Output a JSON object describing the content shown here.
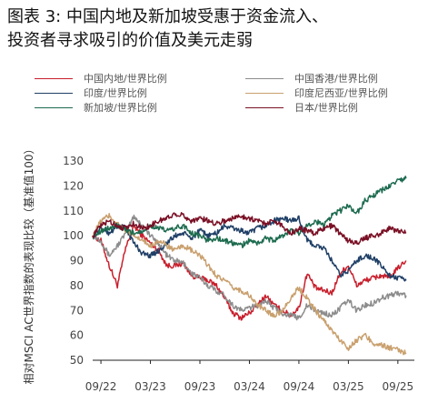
{
  "title_line1": "图表 3:  中国内地及新加坡受惠于资金流入、",
  "title_line2": "投资者寻求吸引的价值及美元走弱",
  "chart_data": {
    "type": "line",
    "title": "图表 3:  中国内地及新加坡受惠于资金流入、投资者寻求吸引的价值及美元走弱",
    "ylabel": "相对MSCI AC世界指数的表现比较（基准值100）",
    "xlabel": "",
    "ylim": [
      50,
      130
    ],
    "yticks": [
      50,
      60,
      70,
      80,
      90,
      100,
      110,
      120,
      130
    ],
    "xrange": [
      "2022-08",
      "2025-11"
    ],
    "xticks": [
      {
        "label": "09/22",
        "date": "2022-09"
      },
      {
        "label": "03/23",
        "date": "2023-03"
      },
      {
        "label": "09/23",
        "date": "2023-09"
      },
      {
        "label": "03/24",
        "date": "2024-03"
      },
      {
        "label": "09/24",
        "date": "2024-09"
      },
      {
        "label": "03/25",
        "date": "2025-03"
      },
      {
        "label": "09/25",
        "date": "2025-09"
      }
    ],
    "grid": false,
    "legend_position": "top",
    "series": [
      {
        "name": "中国内地/世界比例",
        "color": "#c8202d",
        "points": [
          [
            "2022-08",
            100
          ],
          [
            "2022-09",
            98
          ],
          [
            "2022-10",
            88
          ],
          [
            "2022-11",
            80
          ],
          [
            "2022-12",
            95
          ],
          [
            "2023-01",
            104
          ],
          [
            "2023-02",
            100
          ],
          [
            "2023-03",
            97
          ],
          [
            "2023-04",
            94
          ],
          [
            "2023-05",
            88
          ],
          [
            "2023-06",
            88
          ],
          [
            "2023-07",
            89
          ],
          [
            "2023-08",
            84
          ],
          [
            "2023-09",
            83
          ],
          [
            "2023-10",
            82
          ],
          [
            "2023-11",
            80
          ],
          [
            "2023-12",
            75
          ],
          [
            "2024-01",
            69
          ],
          [
            "2024-02",
            67
          ],
          [
            "2024-03",
            69
          ],
          [
            "2024-04",
            72
          ],
          [
            "2024-05",
            76
          ],
          [
            "2024-06",
            72
          ],
          [
            "2024-07",
            70
          ],
          [
            "2024-08",
            68
          ],
          [
            "2024-09",
            71
          ],
          [
            "2024-10",
            85
          ],
          [
            "2024-11",
            79
          ],
          [
            "2024-12",
            78
          ],
          [
            "2025-01",
            77
          ],
          [
            "2025-02",
            85
          ],
          [
            "2025-03",
            88
          ],
          [
            "2025-04",
            80
          ],
          [
            "2025-05",
            82
          ],
          [
            "2025-06",
            83
          ],
          [
            "2025-07",
            84
          ],
          [
            "2025-08",
            83
          ],
          [
            "2025-09",
            87
          ],
          [
            "2025-10",
            90
          ]
        ]
      },
      {
        "name": "中国香港/世界比例",
        "color": "#8c8c8c",
        "points": [
          [
            "2022-08",
            100
          ],
          [
            "2022-09",
            98
          ],
          [
            "2022-10",
            92
          ],
          [
            "2022-11",
            96
          ],
          [
            "2022-12",
            101
          ],
          [
            "2023-01",
            108
          ],
          [
            "2023-02",
            104
          ],
          [
            "2023-03",
            100
          ],
          [
            "2023-04",
            97
          ],
          [
            "2023-05",
            92
          ],
          [
            "2023-06",
            90
          ],
          [
            "2023-07",
            89
          ],
          [
            "2023-08",
            85
          ],
          [
            "2023-09",
            83
          ],
          [
            "2023-10",
            80
          ],
          [
            "2023-11",
            78
          ],
          [
            "2023-12",
            76
          ],
          [
            "2024-01",
            72
          ],
          [
            "2024-02",
            70
          ],
          [
            "2024-03",
            71
          ],
          [
            "2024-04",
            72
          ],
          [
            "2024-05",
            74
          ],
          [
            "2024-06",
            71
          ],
          [
            "2024-07",
            69
          ],
          [
            "2024-08",
            68
          ],
          [
            "2024-09",
            67
          ],
          [
            "2024-10",
            72
          ],
          [
            "2024-11",
            70
          ],
          [
            "2024-12",
            69
          ],
          [
            "2025-01",
            68
          ],
          [
            "2025-02",
            71
          ],
          [
            "2025-03",
            74
          ],
          [
            "2025-04",
            70
          ],
          [
            "2025-05",
            72
          ],
          [
            "2025-06",
            73
          ],
          [
            "2025-07",
            75
          ],
          [
            "2025-08",
            76
          ],
          [
            "2025-09",
            77
          ],
          [
            "2025-10",
            76
          ]
        ]
      },
      {
        "name": "印度/世界比例",
        "color": "#1f3f66",
        "points": [
          [
            "2022-08",
            100
          ],
          [
            "2022-09",
            103
          ],
          [
            "2022-10",
            101
          ],
          [
            "2022-11",
            104
          ],
          [
            "2022-12",
            103
          ],
          [
            "2023-01",
            97
          ],
          [
            "2023-02",
            93
          ],
          [
            "2023-03",
            92
          ],
          [
            "2023-04",
            94
          ],
          [
            "2023-05",
            97
          ],
          [
            "2023-06",
            100
          ],
          [
            "2023-07",
            101
          ],
          [
            "2023-08",
            99
          ],
          [
            "2023-09",
            102
          ],
          [
            "2023-10",
            100
          ],
          [
            "2023-11",
            101
          ],
          [
            "2023-12",
            104
          ],
          [
            "2024-01",
            103
          ],
          [
            "2024-02",
            102
          ],
          [
            "2024-03",
            101
          ],
          [
            "2024-04",
            103
          ],
          [
            "2024-05",
            104
          ],
          [
            "2024-06",
            106
          ],
          [
            "2024-07",
            107
          ],
          [
            "2024-08",
            106
          ],
          [
            "2024-09",
            107
          ],
          [
            "2024-10",
            98
          ],
          [
            "2024-11",
            96
          ],
          [
            "2024-12",
            95
          ],
          [
            "2025-01",
            90
          ],
          [
            "2025-02",
            84
          ],
          [
            "2025-03",
            86
          ],
          [
            "2025-04",
            90
          ],
          [
            "2025-05",
            92
          ],
          [
            "2025-06",
            91
          ],
          [
            "2025-07",
            88
          ],
          [
            "2025-08",
            84
          ],
          [
            "2025-09",
            83
          ],
          [
            "2025-10",
            82
          ]
        ]
      },
      {
        "name": "印度尼西亚/世界比例",
        "color": "#c9a06e",
        "points": [
          [
            "2022-08",
            100
          ],
          [
            "2022-09",
            106
          ],
          [
            "2022-10",
            108
          ],
          [
            "2022-11",
            105
          ],
          [
            "2022-12",
            102
          ],
          [
            "2023-01",
            100
          ],
          [
            "2023-02",
            98
          ],
          [
            "2023-03",
            96
          ],
          [
            "2023-04",
            98
          ],
          [
            "2023-05",
            96
          ],
          [
            "2023-06",
            94
          ],
          [
            "2023-07",
            96
          ],
          [
            "2023-08",
            94
          ],
          [
            "2023-09",
            92
          ],
          [
            "2023-10",
            88
          ],
          [
            "2023-11",
            84
          ],
          [
            "2023-12",
            82
          ],
          [
            "2024-01",
            79
          ],
          [
            "2024-02",
            78
          ],
          [
            "2024-03",
            76
          ],
          [
            "2024-04",
            72
          ],
          [
            "2024-05",
            70
          ],
          [
            "2024-06",
            68
          ],
          [
            "2024-07",
            70
          ],
          [
            "2024-08",
            75
          ],
          [
            "2024-09",
            79
          ],
          [
            "2024-10",
            75
          ],
          [
            "2024-11",
            70
          ],
          [
            "2024-12",
            66
          ],
          [
            "2025-01",
            62
          ],
          [
            "2025-02",
            58
          ],
          [
            "2025-03",
            55
          ],
          [
            "2025-04",
            58
          ],
          [
            "2025-05",
            60
          ],
          [
            "2025-06",
            57
          ],
          [
            "2025-07",
            56
          ],
          [
            "2025-08",
            55
          ],
          [
            "2025-09",
            54
          ],
          [
            "2025-10",
            53
          ]
        ]
      },
      {
        "name": "新加坡/世界比例",
        "color": "#1d6b4f",
        "points": [
          [
            "2022-08",
            100
          ],
          [
            "2022-09",
            102
          ],
          [
            "2022-10",
            103
          ],
          [
            "2022-11",
            104
          ],
          [
            "2022-12",
            102
          ],
          [
            "2023-01",
            101
          ],
          [
            "2023-02",
            102
          ],
          [
            "2023-03",
            104
          ],
          [
            "2023-04",
            103
          ],
          [
            "2023-05",
            102
          ],
          [
            "2023-06",
            103
          ],
          [
            "2023-07",
            104
          ],
          [
            "2023-08",
            101
          ],
          [
            "2023-09",
            100
          ],
          [
            "2023-10",
            98
          ],
          [
            "2023-11",
            99
          ],
          [
            "2023-12",
            98
          ],
          [
            "2024-01",
            97
          ],
          [
            "2024-02",
            96
          ],
          [
            "2024-03",
            98
          ],
          [
            "2024-04",
            97
          ],
          [
            "2024-05",
            99
          ],
          [
            "2024-06",
            98
          ],
          [
            "2024-07",
            100
          ],
          [
            "2024-08",
            102
          ],
          [
            "2024-09",
            101
          ],
          [
            "2024-10",
            104
          ],
          [
            "2024-11",
            106
          ],
          [
            "2024-12",
            104
          ],
          [
            "2025-01",
            108
          ],
          [
            "2025-02",
            110
          ],
          [
            "2025-03",
            112
          ],
          [
            "2025-04",
            109
          ],
          [
            "2025-05",
            114
          ],
          [
            "2025-06",
            116
          ],
          [
            "2025-07",
            118
          ],
          [
            "2025-08",
            120
          ],
          [
            "2025-09",
            122
          ],
          [
            "2025-10",
            123
          ]
        ]
      },
      {
        "name": "日本/世界比例",
        "color": "#7a1025",
        "points": [
          [
            "2022-08",
            100
          ],
          [
            "2022-09",
            104
          ],
          [
            "2022-10",
            106
          ],
          [
            "2022-11",
            104
          ],
          [
            "2022-12",
            103
          ],
          [
            "2023-01",
            105
          ],
          [
            "2023-02",
            103
          ],
          [
            "2023-03",
            104
          ],
          [
            "2023-04",
            106
          ],
          [
            "2023-05",
            107
          ],
          [
            "2023-06",
            109
          ],
          [
            "2023-07",
            108
          ],
          [
            "2023-08",
            106
          ],
          [
            "2023-09",
            107
          ],
          [
            "2023-10",
            106
          ],
          [
            "2023-11",
            105
          ],
          [
            "2023-12",
            106
          ],
          [
            "2024-01",
            107
          ],
          [
            "2024-02",
            108
          ],
          [
            "2024-03",
            107
          ],
          [
            "2024-04",
            106
          ],
          [
            "2024-05",
            105
          ],
          [
            "2024-06",
            106
          ],
          [
            "2024-07",
            104
          ],
          [
            "2024-08",
            101
          ],
          [
            "2024-09",
            103
          ],
          [
            "2024-10",
            102
          ],
          [
            "2024-11",
            101
          ],
          [
            "2024-12",
            103
          ],
          [
            "2025-01",
            104
          ],
          [
            "2025-02",
            101
          ],
          [
            "2025-03",
            98
          ],
          [
            "2025-04",
            97
          ],
          [
            "2025-05",
            99
          ],
          [
            "2025-06",
            100
          ],
          [
            "2025-07",
            101
          ],
          [
            "2025-08",
            103
          ],
          [
            "2025-09",
            102
          ],
          [
            "2025-10",
            101
          ]
        ]
      }
    ]
  }
}
